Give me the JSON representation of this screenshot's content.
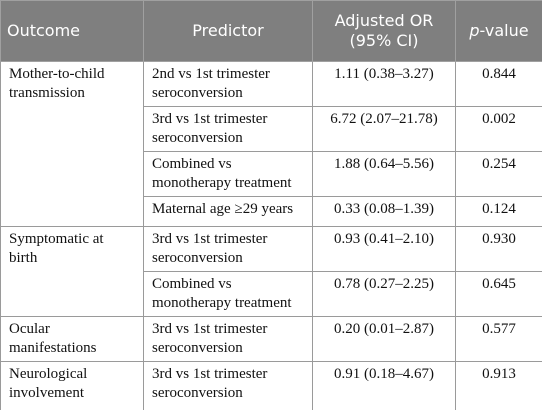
{
  "table": {
    "header": [
      "Outcome",
      "Predictor",
      "Adjusted OR (95% CI)",
      "p-value"
    ],
    "groups": [
      {
        "outcome": "Mother-to-child transmission",
        "rows": [
          [
            "2nd vs 1st trimester seroconversion",
            "1.11 (0.38–3.27)",
            "0.844"
          ],
          [
            "3rd vs 1st trimester seroconversion",
            "6.72 (2.07–21.78)",
            "0.002"
          ],
          [
            "Combined vs monotherapy treatment",
            "1.88 (0.64–5.56)",
            "0.254"
          ],
          [
            "Maternal age ≥29 years",
            "0.33 (0.08–1.39)",
            "0.124"
          ]
        ]
      },
      {
        "outcome": "Symptomatic at birth",
        "rows": [
          [
            "3rd vs 1st trimester seroconversion",
            "0.93 (0.41–2.10)",
            "0.930"
          ],
          [
            "Combined vs monotherapy treatment",
            "0.78 (0.27–2.25)",
            "0.645"
          ]
        ]
      },
      {
        "outcome": "Ocular manifestations",
        "rows": [
          [
            "3rd vs 1st trimester seroconversion",
            "0.20 (0.01–2.87)",
            "0.577"
          ]
        ]
      },
      {
        "outcome": "Neurological involvement",
        "rows": [
          [
            "3rd vs 1st trimester seroconversion",
            "0.91 (0.18–4.67)",
            "0.913"
          ]
        ]
      }
    ]
  }
}
